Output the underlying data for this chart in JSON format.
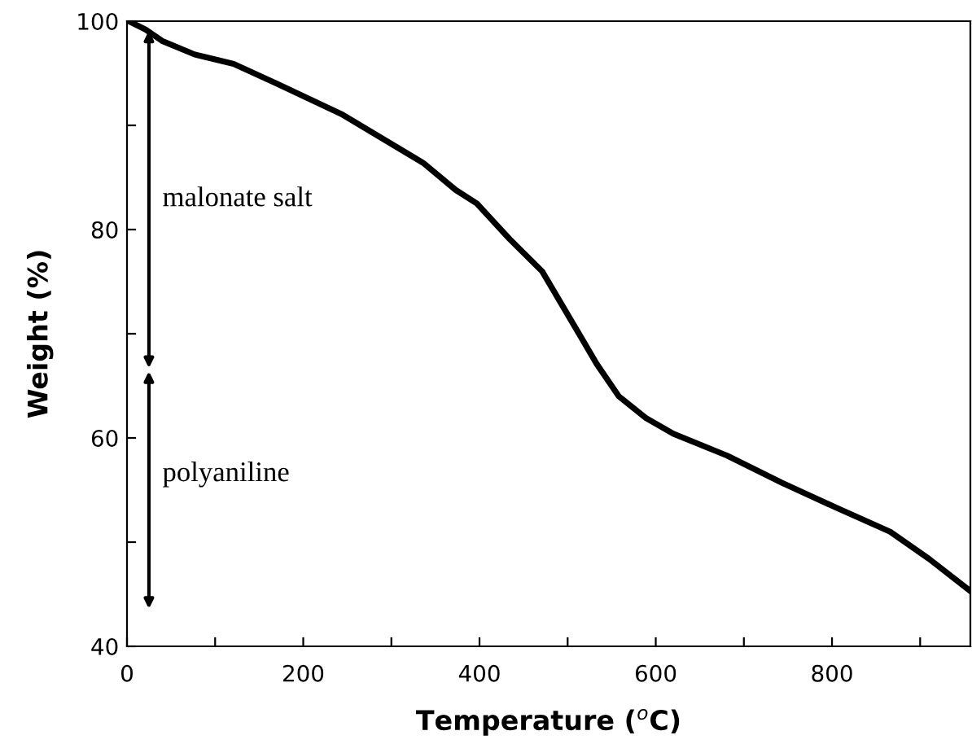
{
  "chart_data": {
    "type": "line",
    "xlabel": "Temperature ($^{o}$C)",
    "ylabel": "Weight (%)",
    "x": [
      2,
      21,
      40,
      77,
      121,
      170,
      243,
      336,
      373,
      397,
      434,
      471,
      515,
      533,
      558,
      589,
      620,
      681,
      743,
      805,
      866,
      910,
      957
    ],
    "series": [
      {
        "color": "#000000",
        "values": [
          100,
          99.2,
          98.1,
          96.8,
          95.9,
          94.0,
          91.1,
          86.4,
          83.8,
          82.5,
          79.1,
          76.0,
          69.7,
          67.1,
          64.0,
          61.9,
          60.4,
          58.3,
          55.7,
          53.3,
          51.0,
          48.4,
          45.3
        ]
      }
    ],
    "xlim": [
      0,
      957
    ],
    "ylim": [
      40,
      100
    ],
    "xticks": [
      0,
      {
        "value": 100,
        "label": null
      },
      200,
      {
        "value": 300,
        "label": null
      },
      400,
      {
        "value": 500,
        "label": null
      },
      600,
      {
        "value": 700,
        "label": null
      },
      800,
      {
        "value": 900,
        "label": null
      }
    ],
    "yticks": [
      40,
      {
        "value": 50,
        "label": null
      },
      60,
      {
        "value": 70,
        "label": null
      },
      80,
      {
        "value": 90,
        "label": null
      },
      100
    ],
    "annotations": [
      "malonate salt",
      "polyaniline"
    ],
    "grid": false,
    "legend": false,
    "marker": "none",
    "line_style": "solid"
  }
}
